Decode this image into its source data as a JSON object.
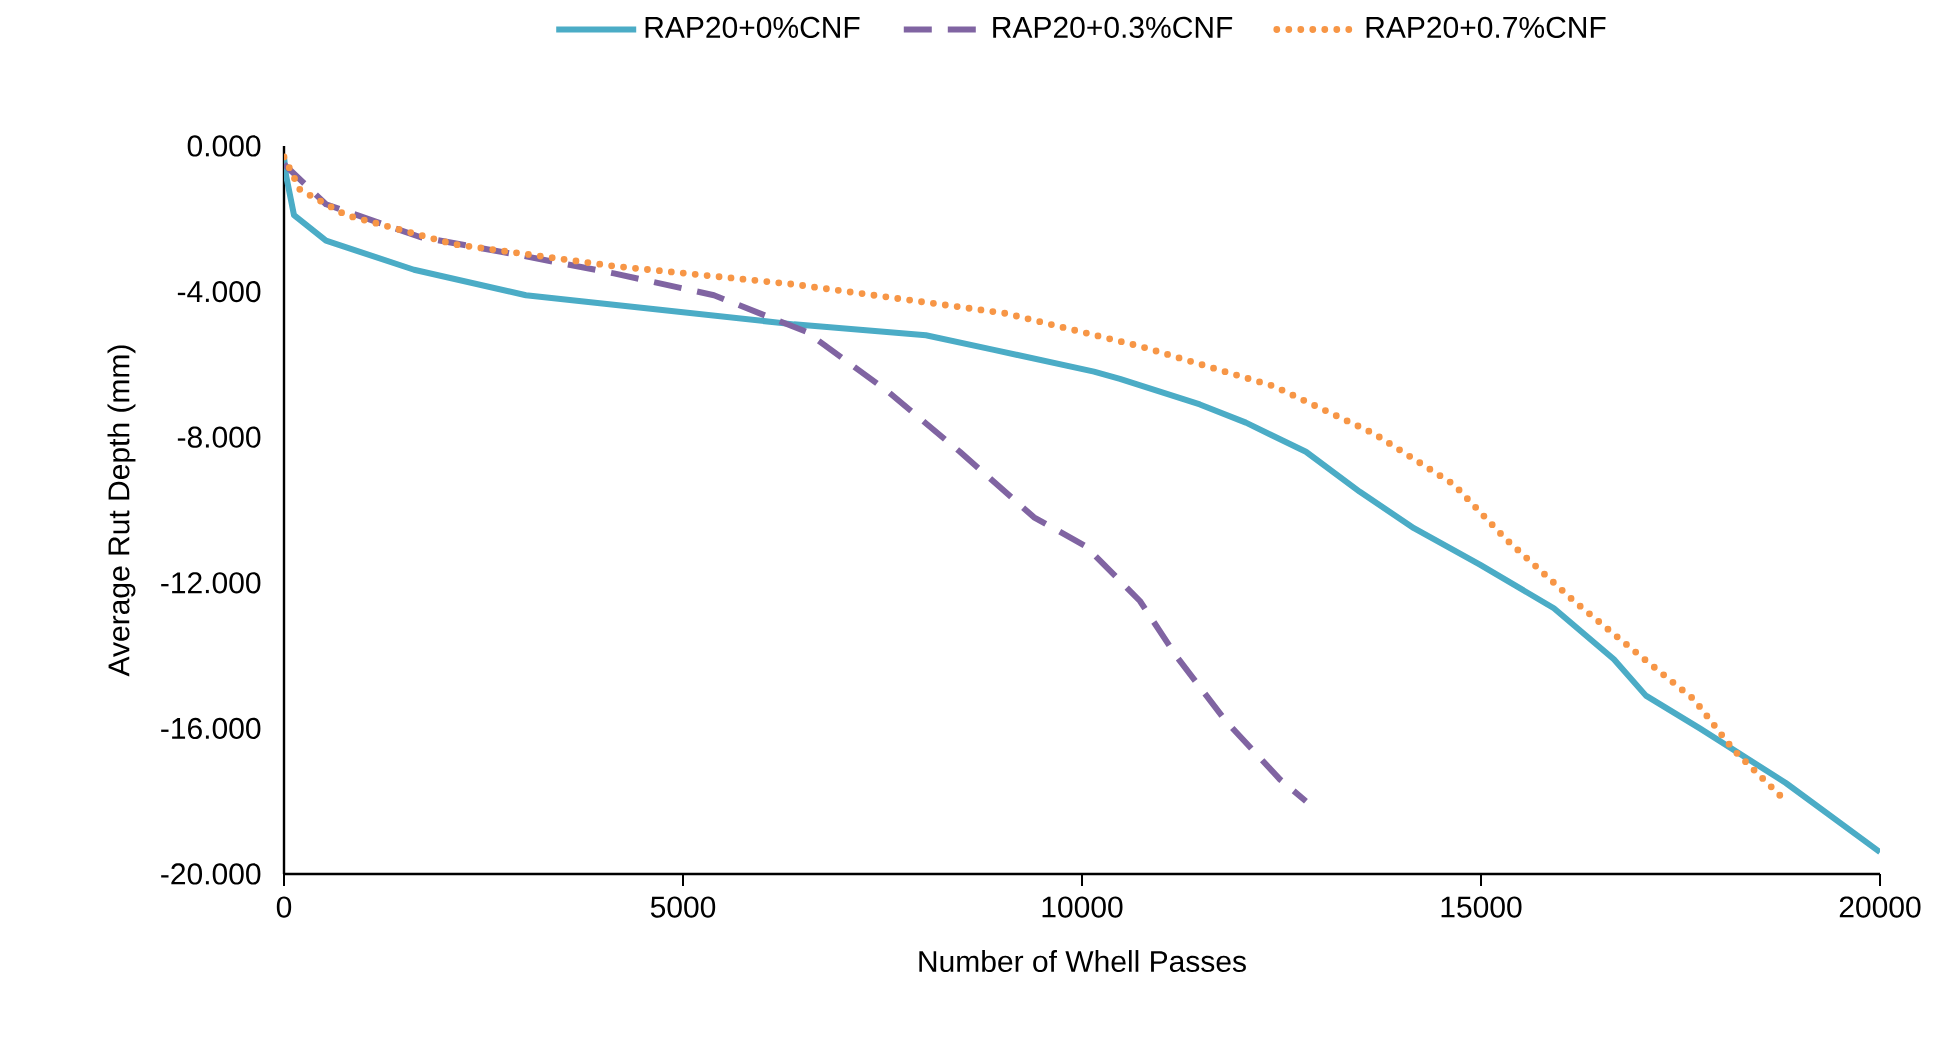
{
  "chart_data": {
    "type": "line",
    "xlabel": "Number of Whell Passes",
    "ylabel": "Average Rut Depth (mm)",
    "xlim": [
      0,
      20000
    ],
    "xticks": [
      0,
      5000,
      10000,
      15000,
      20000
    ],
    "ylim": [
      -20,
      0
    ],
    "yticks": [
      {
        "value": 0,
        "label": "0.000"
      },
      {
        "value": -4,
        "label": "-4.000"
      },
      {
        "value": -8,
        "label": "-8.000"
      },
      {
        "value": -12,
        "label": "-12.000"
      },
      {
        "value": -16,
        "label": "-16.000"
      },
      {
        "value": -20,
        "label": "-20.000"
      }
    ],
    "grid": false,
    "legend": "top",
    "marker": "none",
    "series": [
      {
        "name": "RAP20+0%CNF",
        "color": "#4bacc6",
        "line_style": "solid",
        "x": [
          0,
          25,
          125,
          526,
          1629,
          3032,
          4711,
          6390,
          8044,
          8896,
          10150,
          10475,
          11477,
          12054,
          12806,
          13482,
          14159,
          14986,
          15913,
          16665,
          17066,
          17742,
          18820,
          20000
        ],
        "values": [
          -0.3,
          -0.8,
          -1.9,
          -2.6,
          -3.4,
          -4.1,
          -4.5,
          -4.9,
          -5.2,
          -5.6,
          -6.2,
          -6.4,
          -7.1,
          -7.6,
          -8.4,
          -9.5,
          -10.5,
          -11.5,
          -12.7,
          -14.1,
          -15.1,
          -16.0,
          -17.5,
          -19.4
        ]
      },
      {
        "name": "RAP20+0.3%CNF",
        "color": "#8064a2",
        "line_style": "dashed",
        "x": [
          0,
          526,
          1704,
          2957,
          4135,
          5388,
          6541,
          7543,
          8470,
          9398,
          10049,
          10726,
          11177,
          11803,
          12480,
          12806
        ],
        "values": [
          -0.5,
          -1.6,
          -2.5,
          -3.0,
          -3.5,
          -4.1,
          -5.1,
          -6.7,
          -8.4,
          -10.2,
          -11.0,
          -12.5,
          -14.0,
          -15.8,
          -17.4,
          -18.0
        ]
      },
      {
        "name": "RAP20+0.7%CNF",
        "color": "#f79646",
        "line_style": "dotted",
        "x": [
          0,
          200,
          777,
          2130,
          4135,
          6390,
          8395,
          9047,
          10726,
          12405,
          13658,
          14660,
          15312,
          16164,
          16991,
          17667,
          18168,
          18820
        ],
        "values": [
          -0.3,
          -1.2,
          -1.9,
          -2.7,
          -3.3,
          -3.8,
          -4.4,
          -4.6,
          -5.5,
          -6.6,
          -7.9,
          -9.3,
          -10.8,
          -12.5,
          -14.0,
          -15.2,
          -16.6,
          -18.0
        ]
      }
    ]
  }
}
